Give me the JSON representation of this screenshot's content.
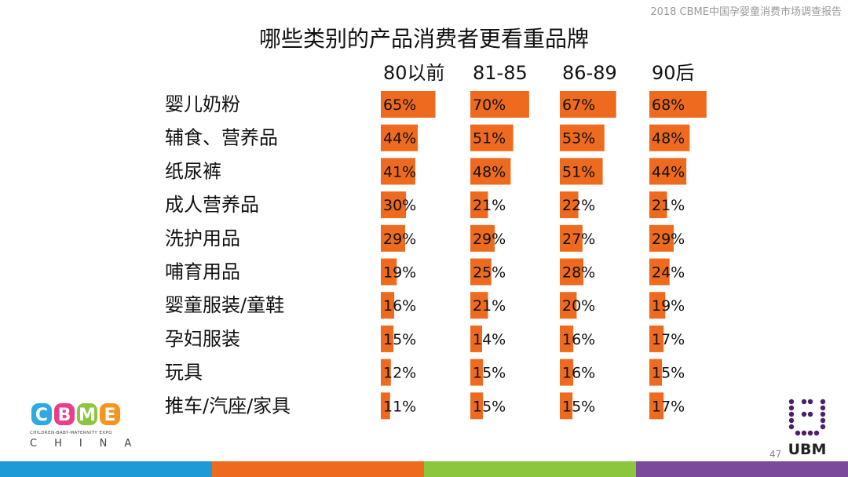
{
  "header": {
    "report_tag": "2018 CBME中国孕婴童消费市场调查报告"
  },
  "slide": {
    "title": "哪些类别的产品消费者更看重品牌",
    "page_number": "47"
  },
  "chart_data": {
    "type": "bar",
    "orientation": "horizontal",
    "layout": "small-multiples",
    "title": "哪些类别的产品消费者更看重品牌",
    "categories": [
      "婴儿奶粉",
      "辅食、营养品",
      "纸尿裤",
      "成人营养品",
      "洗护用品",
      "哺育用品",
      "婴童服装/童鞋",
      "孕妇服装",
      "玩具",
      "推车/汽座/家具"
    ],
    "series": [
      {
        "name": "80以前",
        "values": [
          65,
          44,
          41,
          30,
          29,
          19,
          16,
          15,
          12,
          11
        ]
      },
      {
        "name": "81-85",
        "values": [
          70,
          51,
          48,
          21,
          29,
          25,
          21,
          14,
          15,
          15
        ]
      },
      {
        "name": "86-89",
        "values": [
          67,
          53,
          51,
          22,
          27,
          28,
          20,
          16,
          16,
          15
        ]
      },
      {
        "name": "90后",
        "values": [
          68,
          48,
          44,
          21,
          29,
          24,
          19,
          17,
          15,
          17
        ]
      }
    ],
    "value_unit": "%",
    "xlim": [
      0,
      100
    ],
    "bar_color": "#ED6A1E",
    "data_labels": true,
    "grid": false,
    "legend": "none"
  },
  "branding": {
    "left_logo": {
      "letters": [
        "C",
        "B",
        "M",
        "E"
      ],
      "letter_colors": [
        "#2DAAE1",
        "#E83E8C",
        "#8CC63F",
        "#F7941D"
      ],
      "subtitle": "CHILDREN-BABY-MATERNITY EXPO",
      "country": "CHINA"
    },
    "right_logo": {
      "text": "UBM",
      "mark_color": "#4B1F6B"
    }
  },
  "footer": {
    "colors": [
      "#1E9AD6",
      "#ED6A1E",
      "#8CC63F",
      "#7B4A9B"
    ]
  }
}
